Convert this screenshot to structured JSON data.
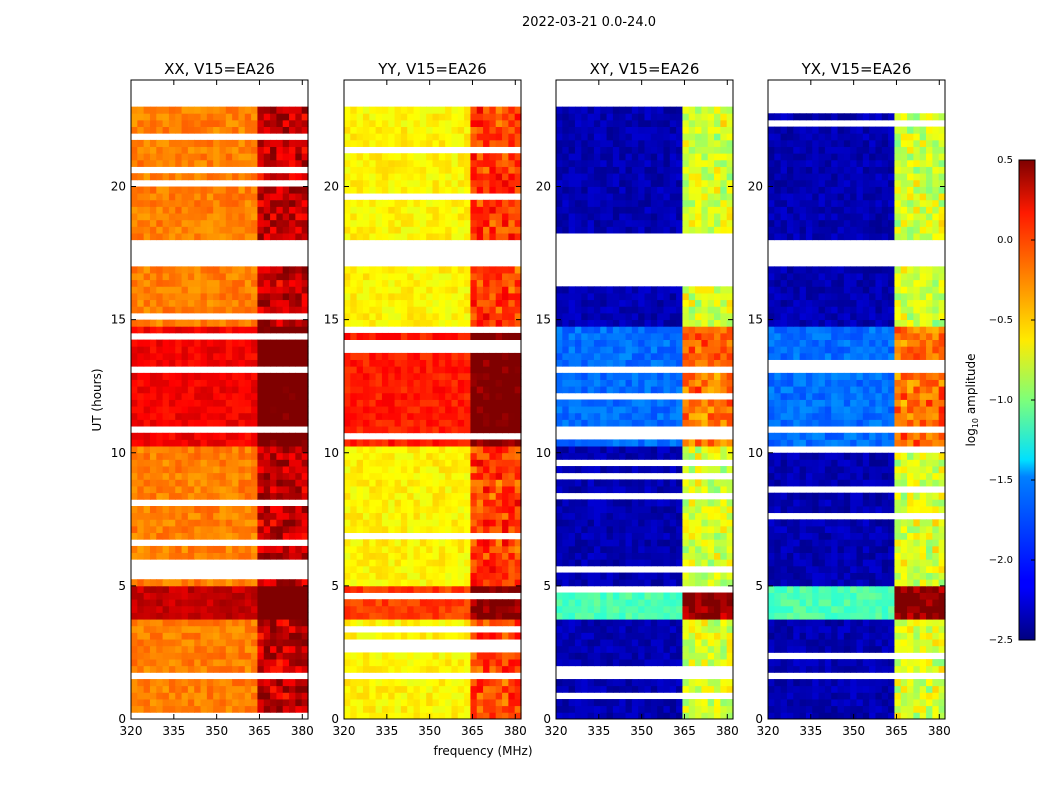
{
  "figure": {
    "suptitle": "2022-03-21 0.0-24.0",
    "xlabel": "frequency (MHz)",
    "ylabel": "UT (hours)",
    "colorbar_label_main": "log",
    "colorbar_label_sub": "10",
    "colorbar_label_tail": " amplitude"
  },
  "chart_data": {
    "type": "heatmap",
    "title": "2022-03-21 0.0-24.0",
    "xlabel": "frequency (MHz)",
    "ylabel": "UT (hours)",
    "xlim": [
      320,
      382
    ],
    "ylim": [
      0,
      24
    ],
    "xticks": [
      320,
      335,
      350,
      365,
      380
    ],
    "xtick_labels": [
      "320",
      "335",
      "350",
      "365",
      "380"
    ],
    "yticks": [
      0,
      5,
      10,
      15,
      20
    ],
    "ytick_labels": [
      "0",
      "5",
      "10",
      "15",
      "20"
    ],
    "panels": [
      {
        "title": "XX, V15=EA26",
        "polarization": "XX",
        "base_level": -0.25,
        "mid_level": 0.15
      },
      {
        "title": "YY, V15=EA26",
        "polarization": "YY",
        "base_level": -0.6,
        "mid_level": 0.05
      },
      {
        "title": "XY, V15=EA26",
        "polarization": "XY",
        "base_level": -2.35,
        "mid_level": -1.8
      },
      {
        "title": "YX, V15=EA26",
        "polarization": "YX",
        "base_level": -2.35,
        "mid_level": -1.8
      }
    ],
    "colorbar": {
      "label": "log10 amplitude",
      "colormap": "jet",
      "range": [
        -2.5,
        0.5
      ],
      "ticks": [
        0.5,
        0.0,
        -0.5,
        -1.0,
        -1.5,
        -2.0,
        -2.5
      ],
      "tick_labels": [
        "0.5",
        "0.0",
        "−0.5",
        "−1.0",
        "−1.5",
        "−2.0",
        "−2.5"
      ]
    },
    "data_time_range_hours": [
      0.0,
      23.0
    ],
    "flagged_gaps_hours": [
      [
        17.0,
        17.9
      ],
      [
        1.4,
        1.6
      ]
    ],
    "rfi_band_MHz": [
      363.0,
      380.0
    ]
  }
}
